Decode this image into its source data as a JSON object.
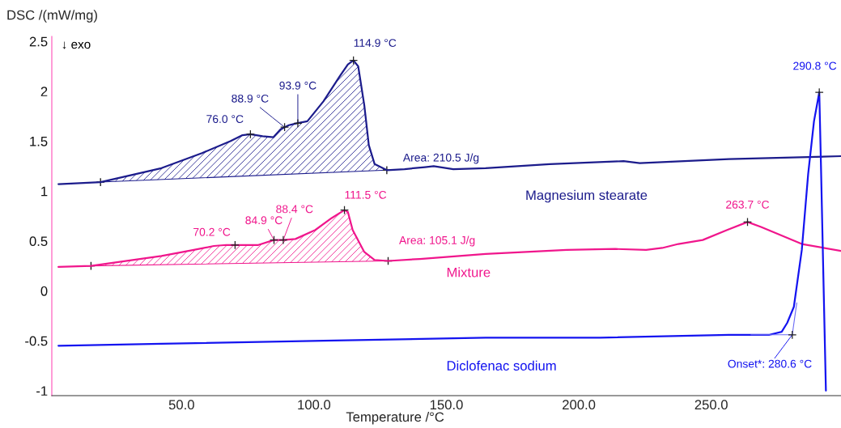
{
  "chart_data": {
    "type": "line",
    "xlabel": "Temperature /°C",
    "ylabel": "DSC /(mW/mg)",
    "xlim": [
      1,
      299
    ],
    "ylim": [
      -1.05,
      2.55
    ],
    "xticks": [
      {
        "value": 50,
        "label": "50.0"
      },
      {
        "value": 100,
        "label": "100.0"
      },
      {
        "value": 150,
        "label": "150.0"
      },
      {
        "value": 200,
        "label": "200.0"
      },
      {
        "value": 250,
        "label": "250.0"
      }
    ],
    "yticks": [
      -1,
      -0.5,
      0,
      0.5,
      1,
      1.5,
      2,
      2.5
    ],
    "grid": false,
    "legend": false,
    "series": [
      {
        "name": "Magnesium stearate",
        "color": "#1c1c8c",
        "x": [
          3.5,
          19.4,
          42.4,
          57.7,
          68.4,
          73,
          76,
          80.6,
          84.7,
          87.4,
          90.5,
          93.5,
          97.5,
          103.6,
          109.7,
          112.8,
          114.9,
          116.7,
          119,
          120.7,
          122.9,
          127.5,
          134.2,
          141.9,
          145.2,
          152.6,
          164.8,
          189,
          216.9,
          223,
          256.7,
          299
        ],
        "values": [
          1.07,
          1.09,
          1.23,
          1.38,
          1.5,
          1.56,
          1.57,
          1.55,
          1.54,
          1.62,
          1.66,
          1.68,
          1.7,
          1.9,
          2.15,
          2.27,
          2.31,
          2.25,
          1.86,
          1.46,
          1.27,
          1.21,
          1.22,
          1.24,
          1.25,
          1.22,
          1.23,
          1.27,
          1.3,
          1.28,
          1.32,
          1.35
        ]
      },
      {
        "name": "Mixture",
        "color": "#f0168c",
        "x": [
          3.5,
          15.8,
          42.4,
          54.6,
          62.2,
          66.9,
          70.2,
          79,
          84.9,
          88.4,
          93,
          100.5,
          106.7,
          111.5,
          112.8,
          114.6,
          119,
          122.9,
          128,
          140,
          164.8,
          195.4,
          213.8,
          225.4,
          231.5,
          237.6,
          246.8,
          256,
          263.7,
          268.8,
          284.2,
          299
        ],
        "values": [
          0.24,
          0.25,
          0.35,
          0.41,
          0.45,
          0.46,
          0.46,
          0.46,
          0.51,
          0.51,
          0.52,
          0.61,
          0.73,
          0.81,
          0.79,
          0.61,
          0.39,
          0.31,
          0.3,
          0.32,
          0.37,
          0.41,
          0.42,
          0.41,
          0.43,
          0.47,
          0.51,
          0.61,
          0.69,
          0.64,
          0.47,
          0.4
        ]
      },
      {
        "name": "Diclofenac sodium",
        "color": "#1414f0",
        "x": [
          3.5,
          42.4,
          103.6,
          164.8,
          208,
          256.7,
          272,
          276.6,
          278.7,
          281.2,
          284.2,
          286.6,
          288.8,
          290.8,
          291.4,
          292.4,
          293.3
        ],
        "values": [
          -0.55,
          -0.53,
          -0.5,
          -0.47,
          -0.47,
          -0.44,
          -0.44,
          -0.41,
          -0.32,
          -0.16,
          0.41,
          1.17,
          1.7,
          1.99,
          1.3,
          0.08,
          -1.0
        ]
      },
      {
        "color": "#6a6af5",
        "x": [
          265,
          280.6,
          282.3
        ],
        "values": [
          -0.44,
          -0.44,
          -0.12
        ]
      },
      {
        "color": "#1c1c8c",
        "x": [
          19.4,
          127.5
        ],
        "values": [
          1.09,
          1.21
        ]
      },
      {
        "color": "#f0168c",
        "x": [
          15.8,
          128
        ],
        "values": [
          0.25,
          0.3
        ]
      }
    ],
    "annotations": [
      {
        "text": "114.9 °C",
        "x": 114.9,
        "y": 2.31
      },
      {
        "text": "93.9 °C",
        "x": 93.9,
        "y": 1.68
      },
      {
        "text": "88.9 °C",
        "x": 88.9,
        "y": 1.64
      },
      {
        "text": "76.0 °C",
        "x": 76,
        "y": 1.57
      },
      "Area: 210.5 J/g",
      {
        "text": "111.5 °C",
        "x": 111.5,
        "y": 0.81
      },
      {
        "text": "88.4 °C",
        "x": 88.4,
        "y": 0.51
      },
      {
        "text": "84.9 °C",
        "x": 84.9,
        "y": 0.51
      },
      {
        "text": "70.2 °C",
        "x": 70.2,
        "y": 0.46
      },
      {
        "text": "263.7 °C",
        "x": 263.7,
        "y": 0.69
      },
      "Area: 105.1 J/g",
      {
        "text": "290.8 °C",
        "x": 290.8,
        "y": 1.99
      },
      {
        "text": "Onset*: 280.6 °C",
        "x": 280.6,
        "y": -0.44
      },
      "↓ exo"
    ]
  }
}
